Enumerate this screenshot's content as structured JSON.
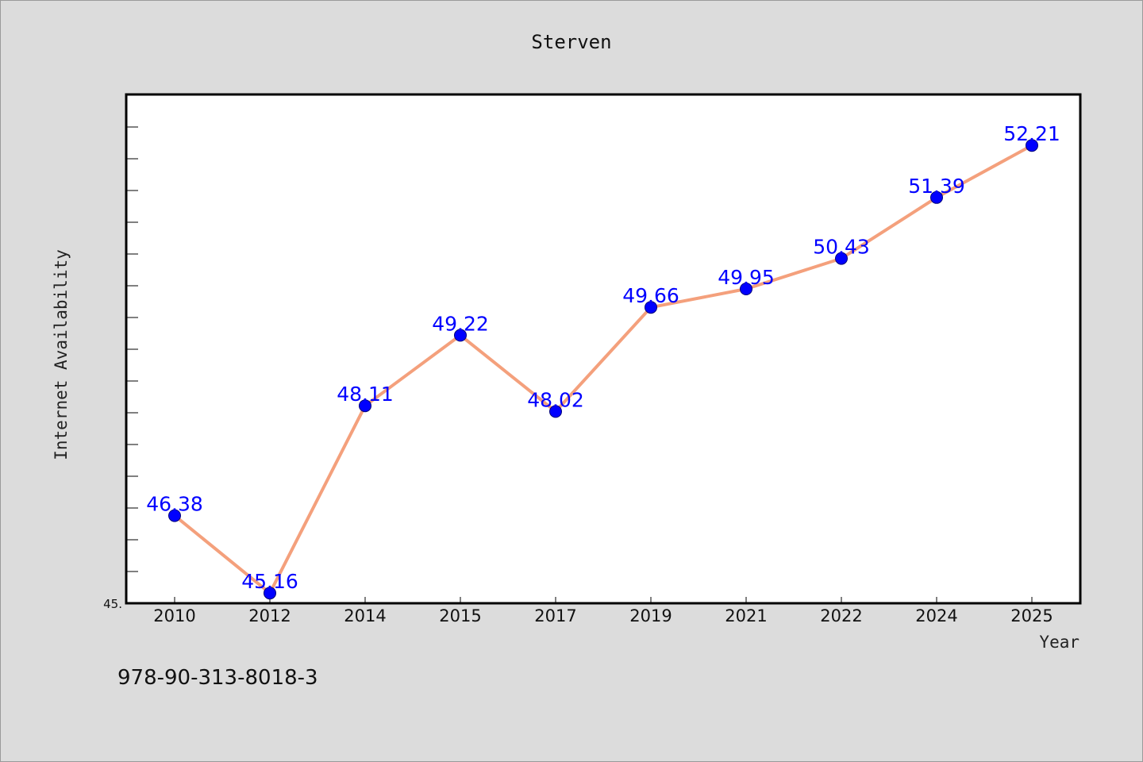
{
  "chart_data": {
    "type": "line",
    "title": "Sterven",
    "xlabel": "Year",
    "ylabel": "Internet Availability",
    "categories": [
      "2010",
      "2012",
      "2014",
      "2015",
      "2017",
      "2019",
      "2021",
      "2022",
      "2024",
      "2025"
    ],
    "series": [
      {
        "values": [
          46.38,
          45.16,
          48.11,
          49.22,
          48.02,
          49.66,
          49.95,
          50.43,
          51.39,
          52.21
        ],
        "value_labels": [
          "46.38",
          "45.16",
          "48.11",
          "49.22",
          "48.02",
          "49.66",
          "49.95",
          "50.43",
          "51.39",
          "52.21"
        ]
      }
    ],
    "ylim": [
      45,
      53
    ],
    "ytick_labels": [
      "45."
    ],
    "grid": false,
    "line_color": "#f4a07c",
    "marker_color": "#0000ff",
    "label_color": "#0000ff"
  },
  "footnote": "978-90-313-8018-3"
}
